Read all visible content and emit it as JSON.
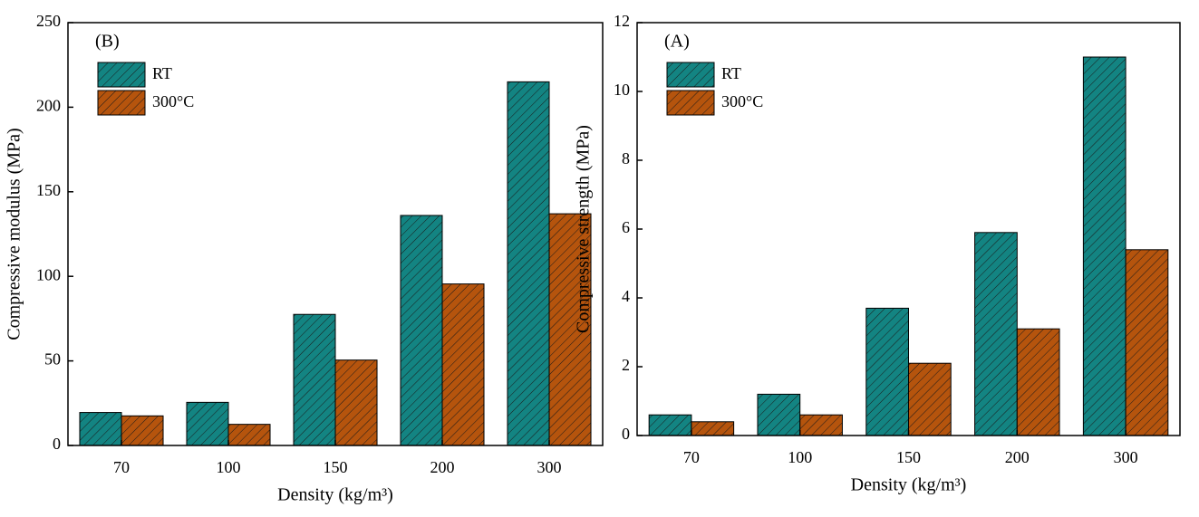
{
  "chart_data": [
    {
      "type": "bar",
      "title": "(B)",
      "xlabel": "Density (kg/m³)",
      "ylabel": "Compressive modulus (MPa)",
      "categories": [
        "70",
        "100",
        "150",
        "200",
        "300"
      ],
      "series": [
        {
          "name": "RT",
          "color": "#138482",
          "values": [
            19.5,
            25.5,
            77.5,
            136,
            215
          ]
        },
        {
          "name": "300°C",
          "color": "#b5540d",
          "values": [
            17.5,
            12.5,
            50.5,
            95.5,
            137
          ]
        }
      ],
      "ylim": [
        0,
        250
      ],
      "yticks": [
        0,
        50,
        100,
        150,
        200,
        250
      ],
      "legend": "upper left"
    },
    {
      "type": "bar",
      "title": "(A)",
      "xlabel": "Density (kg/m³)",
      "ylabel": "Compressive strength (MPa)",
      "categories": [
        "70",
        "100",
        "150",
        "200",
        "300"
      ],
      "series": [
        {
          "name": "RT",
          "color": "#138482",
          "values": [
            0.6,
            1.2,
            3.7,
            5.9,
            11.0
          ]
        },
        {
          "name": "300°C",
          "color": "#b5540d",
          "values": [
            0.4,
            0.6,
            2.1,
            3.1,
            5.4
          ]
        }
      ],
      "ylim": [
        0,
        12
      ],
      "yticks": [
        0,
        2,
        4,
        6,
        8,
        10,
        12
      ],
      "legend": "upper left"
    }
  ]
}
